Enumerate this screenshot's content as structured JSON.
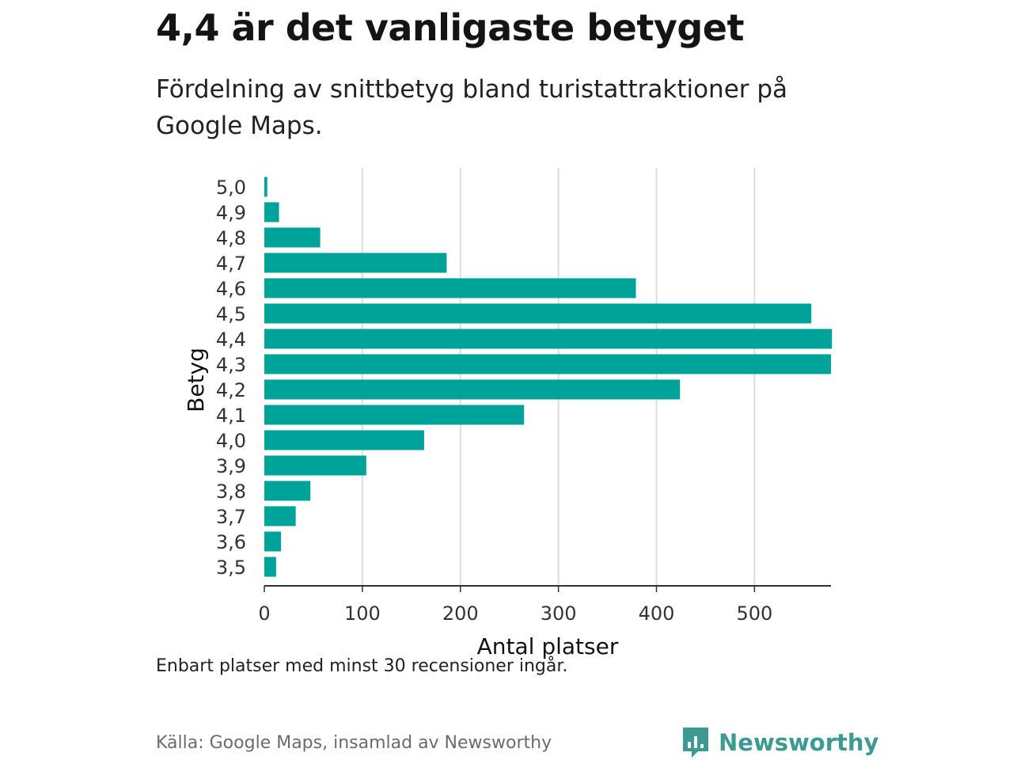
{
  "header": {
    "title": "4,4 är det vanligaste betyget",
    "subtitle": "Fördelning av snittbetyg bland turistattraktioner på Google Maps."
  },
  "footer": {
    "note": "Enbart platser med minst 30 recensioner ingår.",
    "source": "Källa: Google Maps, insamlad av Newsworthy",
    "brand": "Newsworthy",
    "brand_icon": "newsworthy-logo-icon"
  },
  "colors": {
    "bar": "#00a39a",
    "brand": "#3c9a93",
    "grid": "#dddddd",
    "axis": "#333333"
  },
  "chart_data": {
    "type": "bar",
    "orientation": "horizontal",
    "categories": [
      "5,0",
      "4,9",
      "4,8",
      "4,7",
      "4,6",
      "4,5",
      "4,4",
      "4,3",
      "4,2",
      "4,1",
      "4,0",
      "3,9",
      "3,8",
      "3,7",
      "3,6",
      "3,5"
    ],
    "values": [
      3,
      15,
      57,
      186,
      379,
      558,
      579,
      578,
      424,
      265,
      163,
      104,
      47,
      32,
      17,
      12
    ],
    "xlabel": "Antal platser",
    "ylabel": "Betyg",
    "xlim": [
      0,
      578
    ],
    "xticks": [
      0,
      100,
      200,
      300,
      400,
      500
    ],
    "xtick_labels": [
      "0",
      "100",
      "200",
      "300",
      "400",
      "500"
    ],
    "grid": "vertical"
  }
}
